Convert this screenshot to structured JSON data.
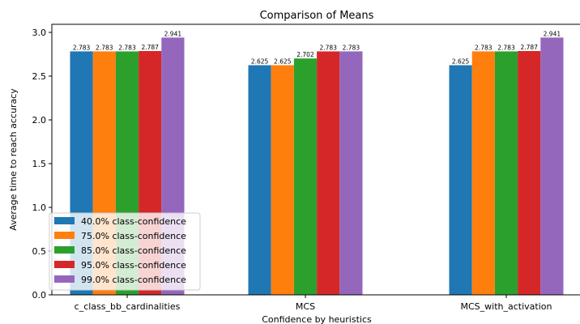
{
  "colors": {
    "series": [
      "#1f77b4",
      "#ff7f0e",
      "#2ca02c",
      "#d62728",
      "#9467bd"
    ],
    "axis": "#000000",
    "background": "#ffffff"
  },
  "chart_data": {
    "type": "bar",
    "title": "Comparison of Means",
    "xlabel": "Confidence by heuristics",
    "ylabel": "Average time to reach accuracy",
    "categories": [
      "c_class_bb_cardinalities",
      "MCS",
      "MCS_with_activation"
    ],
    "series": [
      {
        "name": "40.0% class-confidence",
        "values": [
          2.783,
          2.625,
          2.625
        ],
        "labels": [
          "2.783",
          "2.625",
          "2.625"
        ]
      },
      {
        "name": "75.0% class-confidence",
        "values": [
          2.783,
          2.625,
          2.783
        ],
        "labels": [
          "2.783",
          "2.625",
          "2.783"
        ]
      },
      {
        "name": "85.0% class-confidence",
        "values": [
          2.783,
          2.702,
          2.783
        ],
        "labels": [
          "2.783",
          "2.702",
          "2.783"
        ]
      },
      {
        "name": "95.0% class-confidence",
        "values": [
          2.787,
          2.783,
          2.787
        ],
        "labels": [
          "2.787",
          "2.783",
          "2.787"
        ]
      },
      {
        "name": "99.0% class-confidence",
        "values": [
          2.941,
          2.783,
          2.941
        ],
        "labels": [
          "2.941",
          "2.783",
          "2.941"
        ]
      }
    ],
    "ylim": [
      0,
      3.0
    ],
    "yticks": [
      "0.0",
      "0.5",
      "1.0",
      "1.5",
      "2.0",
      "2.5",
      "3.0"
    ],
    "grid": false,
    "legend_position": "lower-left"
  }
}
